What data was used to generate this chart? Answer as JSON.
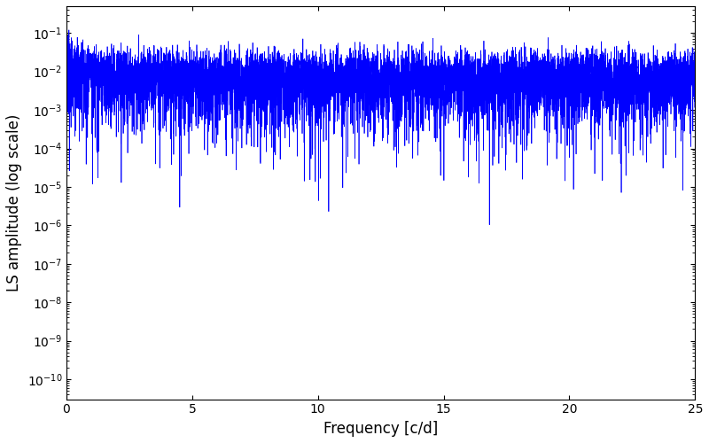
{
  "line_color": "#0000ff",
  "xlabel": "Frequency [c/d]",
  "ylabel": "LS amplitude (log scale)",
  "xlim": [
    0,
    25
  ],
  "ylim": [
    3e-11,
    0.5
  ],
  "xticks": [
    0,
    5,
    10,
    15,
    20,
    25
  ],
  "figsize": [
    8.0,
    5.0
  ],
  "dpi": 100,
  "seed": 12345,
  "n_points": 8000,
  "freq_max": 25.0,
  "background_color": "#ffffff",
  "line_width": 0.5
}
